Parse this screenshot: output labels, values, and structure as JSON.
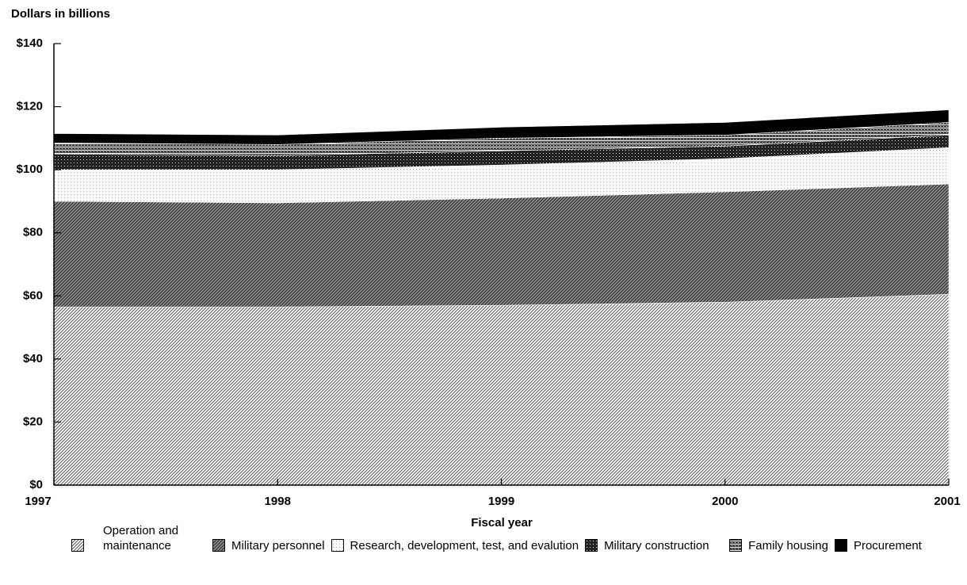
{
  "chart_data": {
    "type": "stacked_area",
    "ylabel": "Dollars in billions",
    "xlabel": "Fiscal year",
    "x": [
      1997,
      1998,
      1999,
      2000,
      2001
    ],
    "xlim": [
      1997,
      2001
    ],
    "xticks": [
      1997,
      1998,
      1999,
      2000,
      2001
    ],
    "ylim": [
      0,
      140
    ],
    "yticks": [
      {
        "value": 0,
        "label": "$0"
      },
      {
        "value": 20,
        "label": "$20"
      },
      {
        "value": 40,
        "label": "$40"
      },
      {
        "value": 60,
        "label": "$60"
      },
      {
        "value": 80,
        "label": "$80"
      },
      {
        "value": 100,
        "label": "$100"
      },
      {
        "value": 120,
        "label": "$120"
      },
      {
        "value": 140,
        "label": "$140"
      }
    ],
    "series": [
      {
        "name": "Operation and maintenance",
        "color": "#555555",
        "values": [
          56.5,
          56.5,
          57,
          58,
          60.5
        ]
      },
      {
        "name": "Military personnel",
        "color": "#333333",
        "values": [
          33.5,
          33,
          34,
          35,
          35
        ]
      },
      {
        "name": "Research, development, test, and evalution",
        "color": "#aaaaaa",
        "values": [
          10,
          10.5,
          10.5,
          10.5,
          11.5
        ]
      },
      {
        "name": "Military construction",
        "color": "#222222",
        "values": [
          5,
          4.5,
          4.5,
          4,
          4
        ]
      },
      {
        "name": "Family housing",
        "color": "#444444",
        "values": [
          3.5,
          3.5,
          4,
          3.5,
          4
        ]
      },
      {
        "name": "Procurement",
        "color": "#000000",
        "values": [
          3,
          3,
          3.5,
          4,
          4
        ]
      }
    ]
  }
}
